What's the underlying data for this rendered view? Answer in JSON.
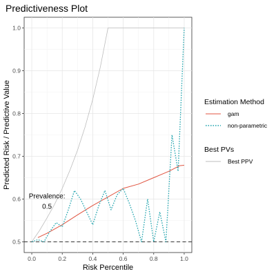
{
  "chart_data": {
    "type": "line",
    "title": "Predictiveness Plot",
    "xlabel": "Risk Percentile",
    "ylabel": "Predicted Risk / Predictive Value",
    "xlim": [
      -0.05,
      1.05
    ],
    "ylim": [
      0.475,
      1.025
    ],
    "x_ticks": [
      0.0,
      0.2,
      0.4,
      0.6,
      0.8,
      1.0
    ],
    "x_tick_labels": [
      "0.0",
      "0.2",
      "0.4",
      "0.6",
      "0.8",
      "1.0"
    ],
    "y_ticks": [
      0.5,
      0.6,
      0.7,
      0.8,
      0.9,
      1.0
    ],
    "y_tick_labels": [
      "0.5",
      "0.6",
      "0.7",
      "0.8",
      "0.9",
      "1.0"
    ],
    "grid": true,
    "legend_position": "right",
    "legend_groups": [
      {
        "title": "Estimation Method",
        "entries": [
          {
            "label": "gam",
            "color": "#E0533F",
            "dash": "solid"
          },
          {
            "label": "non-parametric",
            "color": "#1FA3AD",
            "dash": "dotted"
          }
        ]
      },
      {
        "title": "Best PVs",
        "entries": [
          {
            "label": "Best PPV",
            "color": "#BDBDBD",
            "dash": "solid"
          }
        ]
      }
    ],
    "annotation": {
      "label": "Prevalence:",
      "value": "0.5",
      "at_x": 0.1,
      "at_y": 0.6
    },
    "reference_line": {
      "y": 0.5,
      "dash": "dashed",
      "color": "#333333"
    },
    "series": [
      {
        "name": "Best PPV",
        "color": "#BDBDBD",
        "dash": "solid",
        "x": [
          0.0,
          0.05,
          0.1,
          0.15,
          0.2,
          0.25,
          0.3,
          0.35,
          0.4,
          0.45,
          0.5,
          0.6,
          0.7,
          0.8,
          0.9,
          1.0
        ],
        "y": [
          0.5,
          0.526,
          0.556,
          0.588,
          0.625,
          0.667,
          0.714,
          0.769,
          0.833,
          0.909,
          1.0,
          1.0,
          1.0,
          1.0,
          1.0,
          1.0
        ]
      },
      {
        "name": "gam",
        "color": "#E0533F",
        "dash": "solid",
        "x": [
          0.04,
          0.1,
          0.2,
          0.3,
          0.4,
          0.5,
          0.6,
          0.7,
          0.8,
          0.9,
          0.97,
          1.0
        ],
        "y": [
          0.51,
          0.52,
          0.54,
          0.563,
          0.585,
          0.605,
          0.625,
          0.635,
          0.65,
          0.665,
          0.678,
          0.679
        ]
      },
      {
        "name": "non-parametric",
        "color": "#1FA3AD",
        "dash": "dotted",
        "x": [
          0.0,
          0.04,
          0.08,
          0.12,
          0.16,
          0.2,
          0.24,
          0.28,
          0.32,
          0.36,
          0.4,
          0.44,
          0.48,
          0.52,
          0.56,
          0.6,
          0.64,
          0.68,
          0.72,
          0.76,
          0.8,
          0.84,
          0.88,
          0.92,
          0.96,
          1.0
        ],
        "y": [
          0.5,
          0.505,
          0.5,
          0.525,
          0.545,
          0.535,
          0.575,
          0.62,
          0.6,
          0.57,
          0.54,
          0.585,
          0.62,
          0.575,
          0.61,
          0.625,
          0.59,
          0.55,
          0.5,
          0.6,
          0.5,
          0.57,
          0.5,
          0.75,
          0.665,
          1.0
        ]
      }
    ]
  }
}
